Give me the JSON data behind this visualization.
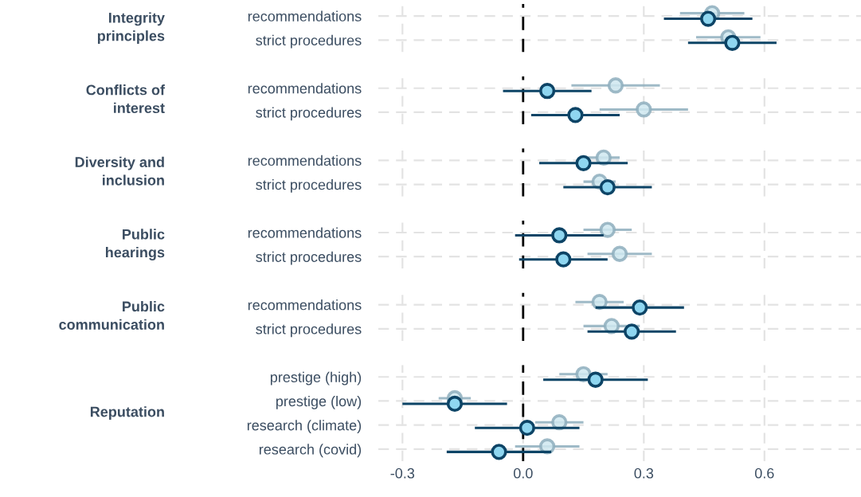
{
  "chart_data": [
    {
      "type": "scatter",
      "orientation": "horizontal",
      "title": "Integrity\nprinciples",
      "categories": [
        "recommendations",
        "strict procedures"
      ],
      "marker": "circle",
      "grid": true,
      "tick_labels": "y",
      "xlim": [
        -0.36,
        0.84
      ],
      "xticks": [
        -0.3,
        0.3,
        0.6
      ],
      "ref_lines": [
        {
          "axis": "x",
          "value": 0,
          "color": "#000000",
          "line_style": "dashed"
        }
      ],
      "series": [
        {
          "color": "#8eaebd",
          "values": [
            0.47,
            0.51
          ],
          "errors": [
            0.08,
            0.08
          ]
        },
        {
          "color": "#0d4466",
          "values": [
            0.46,
            0.52
          ],
          "errors": [
            0.11,
            0.11
          ]
        }
      ]
    },
    {
      "type": "scatter",
      "orientation": "horizontal",
      "title": "Conflicts of\ninterest",
      "categories": [
        "recommendations",
        "strict procedures"
      ],
      "marker": "circle",
      "grid": true,
      "tick_labels": "y",
      "xlim": [
        -0.36,
        0.84
      ],
      "xticks": [
        -0.3,
        0.3,
        0.6
      ],
      "ref_lines": [
        {
          "axis": "x",
          "value": 0,
          "color": "#000000",
          "line_style": "dashed"
        }
      ],
      "series": [
        {
          "color": "#8eaebd",
          "values": [
            0.23,
            0.3
          ],
          "errors": [
            0.11,
            0.11
          ]
        },
        {
          "color": "#0d4466",
          "values": [
            0.06,
            0.13
          ],
          "errors": [
            0.11,
            0.11
          ]
        }
      ]
    },
    {
      "type": "scatter",
      "orientation": "horizontal",
      "title": "Diversity and\ninclusion",
      "categories": [
        "recommendations",
        "strict procedures"
      ],
      "marker": "circle",
      "grid": true,
      "tick_labels": "y",
      "xlim": [
        -0.36,
        0.84
      ],
      "xticks": [
        -0.3,
        0.3,
        0.6
      ],
      "ref_lines": [
        {
          "axis": "x",
          "value": 0,
          "color": "#000000",
          "line_style": "dashed"
        }
      ],
      "series": [
        {
          "color": "#8eaebd",
          "values": [
            0.2,
            0.19
          ],
          "errors": [
            0.04,
            0.04
          ]
        },
        {
          "color": "#0d4466",
          "values": [
            0.15,
            0.21
          ],
          "errors": [
            0.11,
            0.11
          ]
        }
      ]
    },
    {
      "type": "scatter",
      "orientation": "horizontal",
      "title": "Public\nhearings",
      "categories": [
        "recommendations",
        "strict procedures"
      ],
      "marker": "circle",
      "grid": true,
      "tick_labels": "y",
      "xlim": [
        -0.36,
        0.84
      ],
      "xticks": [
        -0.3,
        0.3,
        0.6
      ],
      "ref_lines": [
        {
          "axis": "x",
          "value": 0,
          "color": "#000000",
          "line_style": "dashed"
        }
      ],
      "series": [
        {
          "color": "#8eaebd",
          "values": [
            0.21,
            0.24
          ],
          "errors": [
            0.06,
            0.08
          ]
        },
        {
          "color": "#0d4466",
          "values": [
            0.09,
            0.1
          ],
          "errors": [
            0.11,
            0.11
          ]
        }
      ]
    },
    {
      "type": "scatter",
      "orientation": "horizontal",
      "title": "Public\ncommunication",
      "categories": [
        "recommendations",
        "strict procedures"
      ],
      "marker": "circle",
      "grid": true,
      "tick_labels": "y",
      "xlim": [
        -0.36,
        0.84
      ],
      "xticks": [
        -0.3,
        0.3,
        0.6
      ],
      "ref_lines": [
        {
          "axis": "x",
          "value": 0,
          "color": "#000000",
          "line_style": "dashed"
        }
      ],
      "series": [
        {
          "color": "#8eaebd",
          "values": [
            0.19,
            0.22
          ],
          "errors": [
            0.06,
            0.07
          ]
        },
        {
          "color": "#0d4466",
          "values": [
            0.29,
            0.27
          ],
          "errors": [
            0.11,
            0.11
          ]
        }
      ]
    },
    {
      "type": "scatter",
      "orientation": "horizontal",
      "title": "Reputation",
      "categories": [
        "prestige (high)",
        "prestige (low)",
        "research (climate)",
        "research (covid)"
      ],
      "marker": "circle",
      "grid": true,
      "xlim": [
        -0.36,
        0.84
      ],
      "xticks": [
        -0.3,
        {
          "value": 0,
          "label": "0.0"
        },
        0.3,
        0.6
      ],
      "ref_lines": [
        {
          "axis": "x",
          "value": 0,
          "color": "#000000",
          "line_style": "dashed"
        }
      ],
      "series": [
        {
          "color": "#8eaebd",
          "values": [
            0.15,
            -0.17,
            0.09,
            0.06
          ],
          "errors": [
            0.06,
            0.04,
            0.06,
            0.08
          ]
        },
        {
          "color": "#0d4466",
          "values": [
            0.18,
            -0.17,
            0.01,
            -0.06
          ],
          "errors": [
            0.13,
            0.13,
            0.13,
            0.13
          ]
        }
      ]
    }
  ]
}
